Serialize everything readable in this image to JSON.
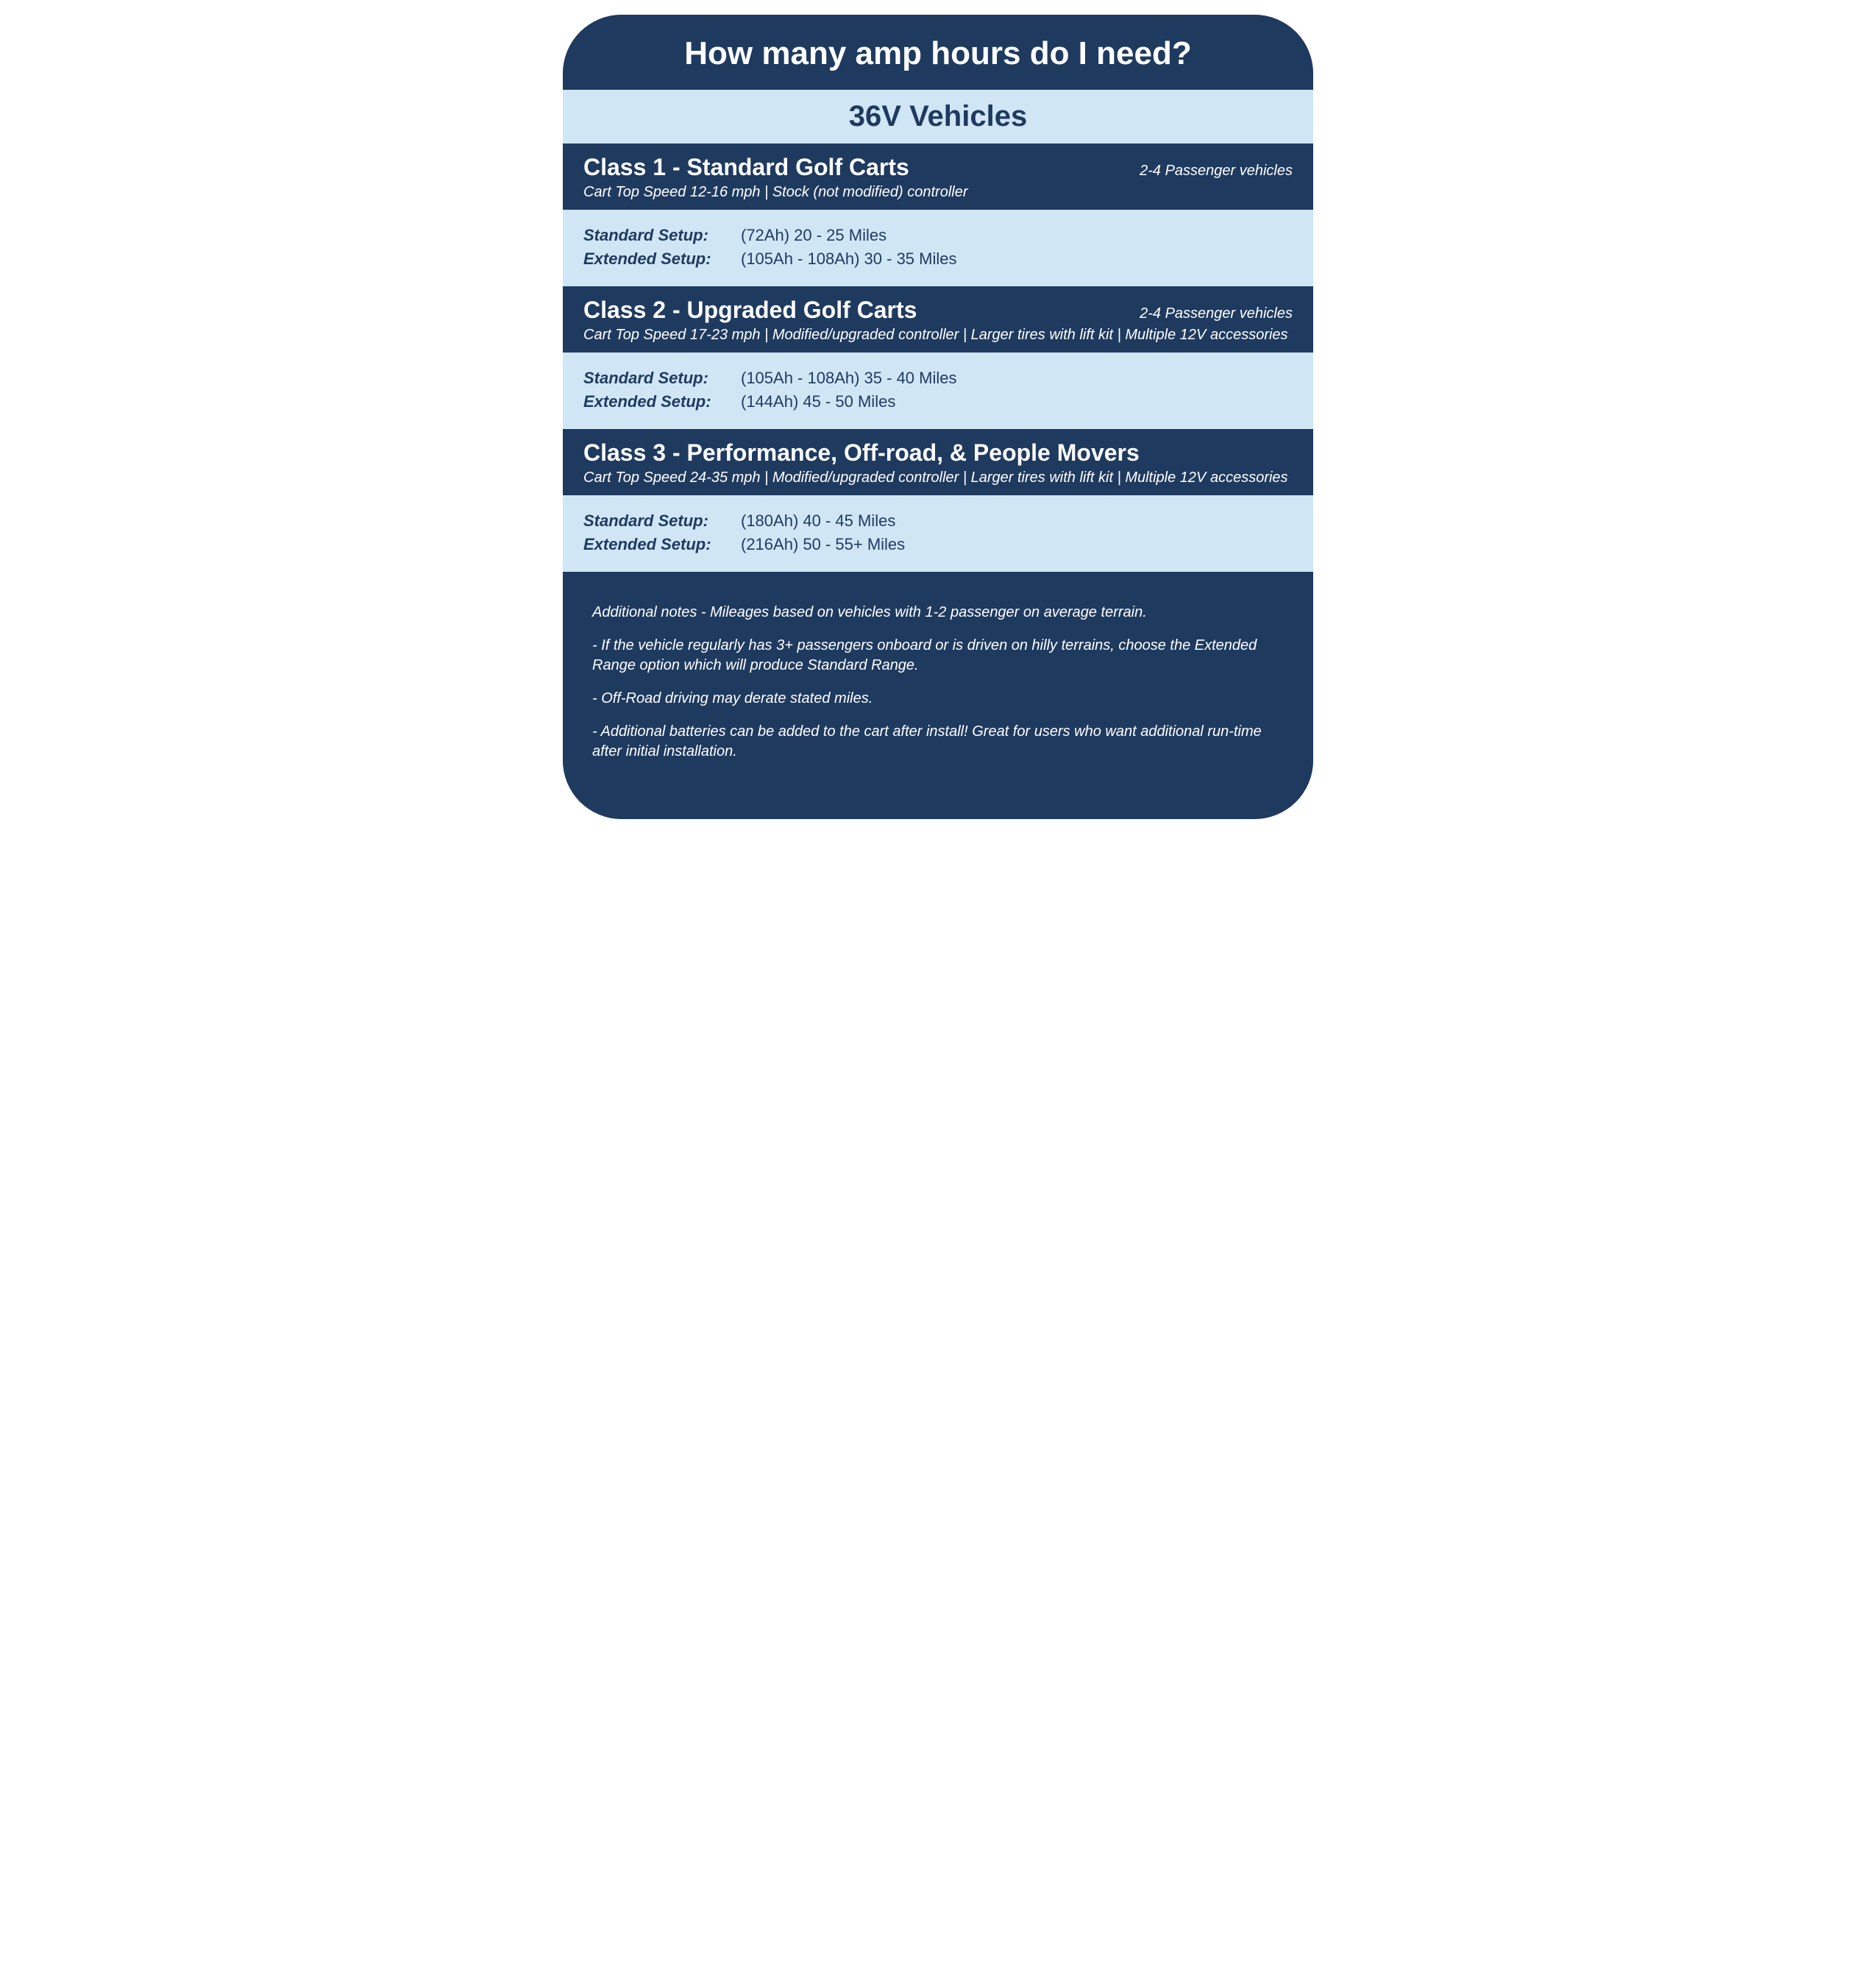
{
  "colors": {
    "dark_bg": "#1f3a5f",
    "light_bg": "#d0e6f5",
    "text_light": "#ffffff",
    "text_dark": "#1f3a5f"
  },
  "title": "How many amp hours do I need?",
  "subtitle": "36V  Vehicles",
  "classes": [
    {
      "name": "Class 1 - Standard Golf Carts",
      "passenger": "2-4 Passenger vehicles",
      "desc": "Cart Top Speed 12-16 mph | Stock (not modified) controller",
      "standard_label": "Standard Setup:",
      "standard_value": "(72Ah)  20 - 25 Miles",
      "extended_label": "Extended Setup:",
      "extended_value": "(105Ah - 108Ah)  30 - 35 Miles"
    },
    {
      "name": "Class 2 - Upgraded Golf Carts",
      "passenger": "2-4 Passenger vehicles",
      "desc": "Cart Top Speed 17-23 mph | Modified/upgraded controller | Larger tires with lift kit | Multiple 12V accessories",
      "standard_label": "Standard Setup:",
      "standard_value": "(105Ah - 108Ah)  35 - 40 Miles",
      "extended_label": "Extended Setup:",
      "extended_value": "(144Ah)  45 - 50 Miles"
    },
    {
      "name": "Class 3 - Performance, Off-road, & People Movers",
      "passenger": "",
      "desc": "Cart Top Speed 24-35 mph | Modified/upgraded controller | Larger tires with lift kit | Multiple 12V accessories",
      "standard_label": "Standard Setup:",
      "standard_value": "(180Ah)  40 - 45 Miles",
      "extended_label": "Extended Setup:",
      "extended_value": "(216Ah)  50 - 55+ Miles"
    }
  ],
  "notes": {
    "n1": "Additional notes - Mileages based on vehicles with 1-2 passenger on average terrain.",
    "n2": "- If the vehicle regularly has 3+ passengers onboard or is driven on hilly terrains, choose the Extended Range option which will produce Standard Range.",
    "n3": "- Off-Road driving may derate stated miles.",
    "n4": "- Additional batteries can be added to the cart after install! Great for users who want additional run-time after initial installation."
  }
}
